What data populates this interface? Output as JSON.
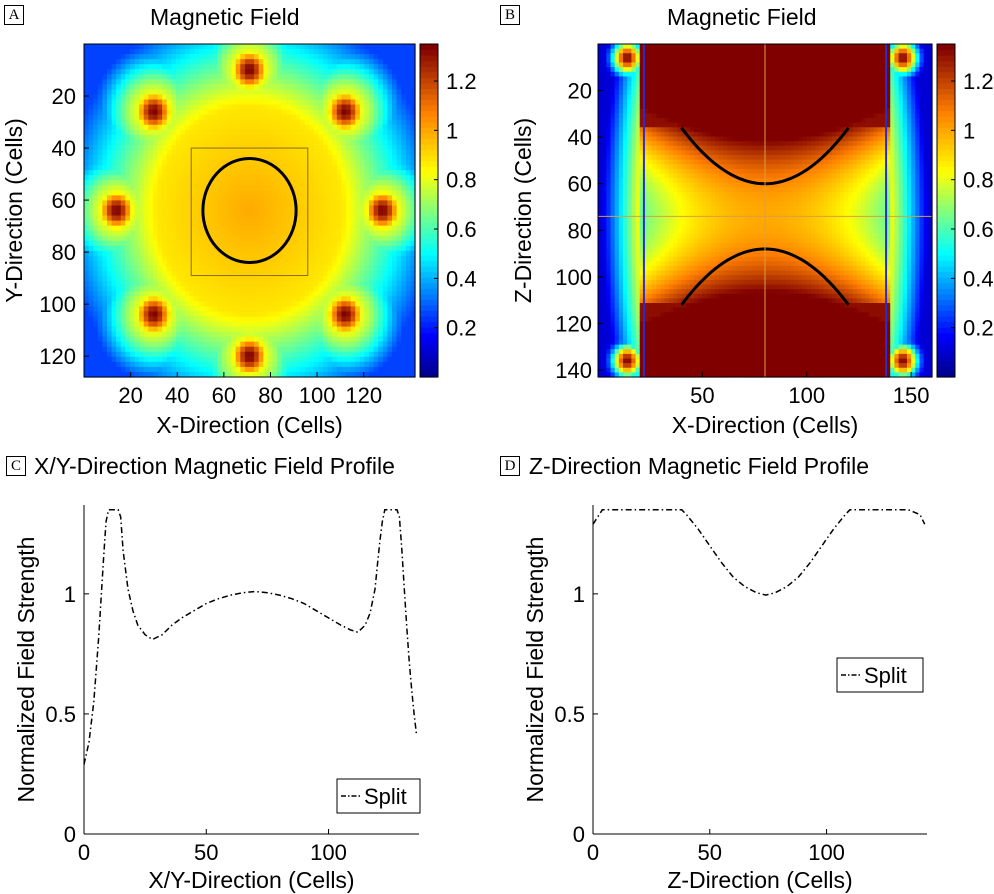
{
  "panels": {
    "A": {
      "label": "A",
      "title": "Magnetic Field"
    },
    "B": {
      "label": "B",
      "title": "Magnetic Field"
    },
    "C": {
      "label": "C",
      "title": "X/Y-Direction Magnetic Field Profile"
    },
    "D": {
      "label": "D",
      "title": "Z-Direction Magnetic Field Profile"
    }
  },
  "colors": {
    "colormap": [
      "#00008f",
      "#0000ff",
      "#00ffff",
      "#ffff00",
      "#ff8000",
      "#800000"
    ],
    "line": "#000000",
    "guide_line": "#d8a040",
    "boundary_blue": "#2b2bd0"
  },
  "chart_data": [
    {
      "id": "A",
      "type": "heatmap",
      "title": "Magnetic Field",
      "xlabel": "X-Direction (Cells)",
      "ylabel": "Y-Direction (Cells)",
      "xlim": [
        0,
        142
      ],
      "ylim": [
        128,
        0
      ],
      "xticks": [
        20,
        40,
        60,
        80,
        100,
        120
      ],
      "xtick_labels": [
        "20",
        "40",
        "60",
        "80",
        "100",
        "120"
      ],
      "yticks": [
        20,
        40,
        60,
        80,
        100,
        120
      ],
      "colorbar": {
        "min": 0,
        "max": 1.35,
        "ticks": [
          0.2,
          0.4,
          0.6,
          0.8,
          1,
          1.2
        ]
      },
      "background_value": 0.25,
      "field_center": [
        71,
        64
      ],
      "ring_radius": 40,
      "ring_value": 0.88,
      "center_value": 1.0,
      "hotspots": [
        [
          71,
          10
        ],
        [
          112,
          26
        ],
        [
          128,
          64
        ],
        [
          112,
          104
        ],
        [
          71,
          120
        ],
        [
          30,
          104
        ],
        [
          14,
          64
        ],
        [
          30,
          26
        ]
      ],
      "hotspot_value": 1.35,
      "contour": {
        "center": [
          71,
          64
        ],
        "radius": 20,
        "value": 1.0
      },
      "box": {
        "x0": 46,
        "y0": 40,
        "x1": 96,
        "y1": 89
      }
    },
    {
      "id": "B",
      "type": "heatmap",
      "title": "Magnetic Field",
      "xlabel": "X-Direction (Cells)",
      "ylabel": "Z-Direction (Cells)",
      "xlim": [
        0,
        160
      ],
      "ylim": [
        143,
        0
      ],
      "xticks": [
        50,
        100,
        150
      ],
      "yticks": [
        20,
        40,
        60,
        80,
        100,
        120,
        140
      ],
      "colorbar": {
        "min": 0,
        "max": 1.35,
        "ticks": [
          0.2,
          0.4,
          0.6,
          0.8,
          1,
          1.2
        ]
      },
      "center": [
        80,
        74
      ],
      "saddle_value": 1.0,
      "cap_value": 1.35,
      "edge_value": 0.1,
      "coil_x": [
        22,
        138
      ],
      "guide_x": 80,
      "guide_y": 74
    },
    {
      "id": "C",
      "type": "line",
      "title": "X/Y-Direction Magnetic Field Profile",
      "xlabel": "X/Y-Direction (Cells)",
      "ylabel": "Normalized Field Strength",
      "xlim": [
        0,
        137
      ],
      "ylim": [
        0,
        1.37
      ],
      "xticks": [
        0,
        50,
        100
      ],
      "yticks": [
        0,
        0.5,
        1
      ],
      "legend": {
        "label": "Split",
        "position": "bottom-right"
      },
      "series": [
        {
          "name": "Split",
          "style": "dash-dot",
          "x": [
            0,
            2,
            4,
            6,
            8,
            9,
            10,
            12,
            14,
            15,
            16,
            18,
            20,
            22,
            25,
            28,
            32,
            36,
            40,
            45,
            50,
            55,
            60,
            65,
            70,
            75,
            80,
            85,
            90,
            95,
            100,
            105,
            109,
            112,
            115,
            117,
            119,
            120,
            121,
            122,
            123,
            128,
            129,
            130,
            131,
            132,
            133,
            134,
            135,
            136
          ],
          "y": [
            0.29,
            0.38,
            0.55,
            0.82,
            1.15,
            1.3,
            1.35,
            1.35,
            1.35,
            1.32,
            1.18,
            1.02,
            0.93,
            0.87,
            0.83,
            0.81,
            0.83,
            0.87,
            0.9,
            0.93,
            0.96,
            0.98,
            0.995,
            1.005,
            1.01,
            1.005,
            0.995,
            0.98,
            0.96,
            0.93,
            0.9,
            0.87,
            0.85,
            0.84,
            0.87,
            0.92,
            1.02,
            1.12,
            1.22,
            1.3,
            1.35,
            1.35,
            1.32,
            1.18,
            1.02,
            0.86,
            0.72,
            0.6,
            0.5,
            0.41
          ]
        }
      ]
    },
    {
      "id": "D",
      "type": "line",
      "title": "Z-Direction Magnetic Field Profile",
      "xlabel": "Z-Direction (Cells)",
      "ylabel": "Normalized Field Strength",
      "xlim": [
        0,
        143
      ],
      "ylim": [
        0,
        1.37
      ],
      "xticks": [
        0,
        50,
        100
      ],
      "yticks": [
        0,
        0.5,
        1
      ],
      "legend": {
        "label": "Split",
        "position": "center-right"
      },
      "series": [
        {
          "name": "Split",
          "style": "dash-dot",
          "x": [
            0,
            2,
            4,
            8,
            15,
            25,
            35,
            38,
            40,
            45,
            50,
            55,
            60,
            65,
            70,
            74,
            78,
            83,
            88,
            93,
            98,
            103,
            108,
            110,
            115,
            125,
            135,
            140,
            142
          ],
          "y": [
            1.29,
            1.32,
            1.35,
            1.35,
            1.35,
            1.35,
            1.35,
            1.35,
            1.33,
            1.27,
            1.2,
            1.13,
            1.07,
            1.03,
            1.005,
            0.995,
            1.005,
            1.03,
            1.07,
            1.13,
            1.2,
            1.27,
            1.33,
            1.35,
            1.35,
            1.35,
            1.35,
            1.33,
            1.29
          ]
        }
      ]
    }
  ]
}
